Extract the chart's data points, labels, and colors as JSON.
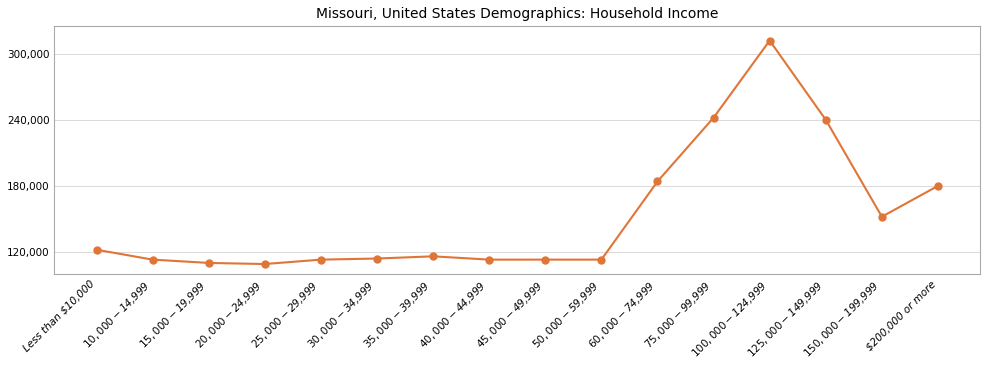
{
  "title": "Missouri, United States Demographics: Household Income",
  "categories": [
    "Less than $10,000",
    "$10,000 - $14,999",
    "$15,000 - $19,999",
    "$20,000 - $24,999",
    "$25,000 - $29,999",
    "$30,000 - $34,999",
    "$35,000 - $39,999",
    "$40,000 - $44,999",
    "$45,000 - $49,999",
    "$50,000 - $59,999",
    "$60,000 - $74,999",
    "$75,000 - $99,999",
    "$100,000 - $124,999",
    "$125,000 - $149,999",
    "$150,000 - $199,999",
    "$200,000 or more"
  ],
  "values": [
    122000,
    113000,
    110000,
    109000,
    113000,
    114000,
    116000,
    113000,
    113000,
    113000,
    184000,
    242000,
    312000,
    240000,
    152000,
    180000
  ],
  "line_color": "#E07538",
  "marker_color": "#E07538",
  "background_color": "#ffffff",
  "yticks": [
    120000,
    180000,
    240000,
    300000
  ],
  "title_fontsize": 10,
  "tick_fontsize": 7.5
}
